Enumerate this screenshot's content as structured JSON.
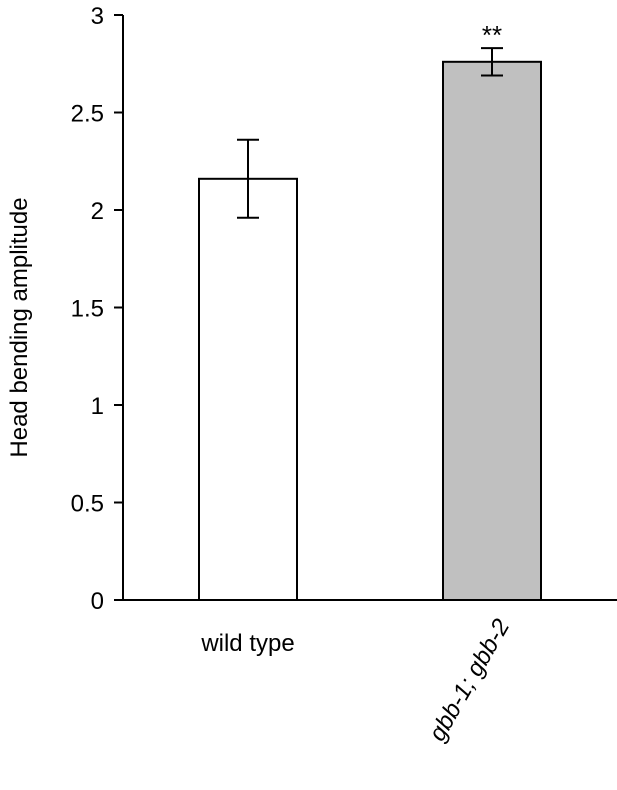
{
  "chart_data": {
    "type": "bar",
    "categories": [
      "wild type",
      "gbb-1; gbb-2"
    ],
    "values": [
      2.16,
      2.76
    ],
    "error": [
      0.2,
      0.07
    ],
    "annotations": [
      "",
      "**"
    ],
    "bar_colors": [
      "#ffffff",
      "#c0c0c0"
    ],
    "edge_color": "#000000",
    "ylabel": "Head bending amplitude",
    "xlabel": "",
    "ylim": [
      0,
      3
    ],
    "yticks": [
      "0",
      "0.5",
      "1",
      "1.5",
      "2",
      "2.5",
      "3"
    ],
    "ytick_values": [
      0,
      0.5,
      1,
      1.5,
      2,
      2.5,
      3
    ],
    "grid": false,
    "legend": "none"
  }
}
